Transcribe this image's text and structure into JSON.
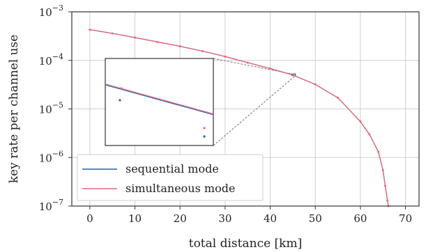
{
  "chart_data": {
    "type": "line",
    "xlabel": "total distance [km]",
    "ylabel": "key rate per channel use",
    "xlim": [
      -4,
      73
    ],
    "ylim": [
      1e-07,
      0.001
    ],
    "yscale": "log",
    "x_ticks": [
      0,
      10,
      20,
      30,
      40,
      50,
      60,
      70
    ],
    "x_tick_labels": [
      "0",
      "10",
      "20",
      "30",
      "40",
      "50",
      "60",
      "70"
    ],
    "y_ticks": [
      1e-07,
      1e-06,
      1e-05,
      0.0001,
      0.001
    ],
    "y_tick_labels": [
      {
        "base": "10",
        "exp": "−7"
      },
      {
        "base": "10",
        "exp": "−6"
      },
      {
        "base": "10",
        "exp": "−5"
      },
      {
        "base": "10",
        "exp": "−4"
      },
      {
        "base": "10",
        "exp": "−3"
      }
    ],
    "grid": true,
    "legend_position": "lower-left",
    "x": [
      0,
      5,
      10,
      15,
      20,
      25,
      30,
      35,
      40,
      45,
      50,
      55,
      60,
      62,
      64,
      65,
      65.5,
      66,
      66.2
    ],
    "series": [
      {
        "name": "sequential mode",
        "color": "#2b5fa6",
        "values": [
          0.00043,
          0.00036,
          0.000295,
          0.00024,
          0.000195,
          0.000155,
          0.00012,
          9e-05,
          6.8e-05,
          5e-05,
          3.2e-05,
          1.7e-05,
          5.5e-06,
          3e-06,
          1.3e-06,
          5.5e-07,
          2.6e-07,
          1.3e-07,
          1e-07
        ]
      },
      {
        "name": "simultaneous mode",
        "color": "#e06a7c",
        "values": [
          0.00043,
          0.00036,
          0.000295,
          0.00024,
          0.000195,
          0.000155,
          0.00012,
          9e-05,
          6.8e-05,
          5e-05,
          3.2e-05,
          1.7e-05,
          5.5e-06,
          3e-06,
          1.3e-06,
          5.5e-07,
          2.6e-07,
          1.3e-07,
          1e-07
        ]
      }
    ],
    "inset": {
      "zoom_x": [
        44.8,
        45.6
      ],
      "zoom_y": [
        4.85e-05,
        5.25e-05
      ]
    }
  }
}
